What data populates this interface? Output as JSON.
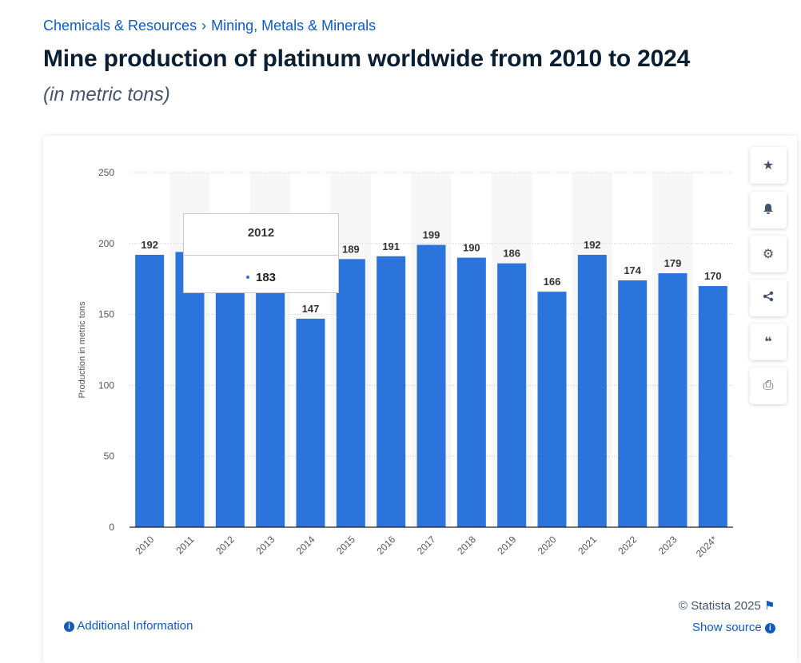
{
  "breadcrumb": [
    "Chemicals & Resources",
    "Mining, Metals & Minerals"
  ],
  "breadcrumb_sep": "›",
  "title": "Mine production of platinum worldwide from 2010 to 2024",
  "subtitle": "(in metric tons)",
  "chart_data": {
    "type": "bar",
    "categories": [
      "2010",
      "2011",
      "2012",
      "2013",
      "2014",
      "2015",
      "2016",
      "2017",
      "2018",
      "2019",
      "2020",
      "2021",
      "2022",
      "2023",
      "2024*"
    ],
    "values": [
      192,
      194,
      183,
      184,
      147,
      189,
      191,
      199,
      190,
      186,
      166,
      192,
      174,
      179,
      170
    ],
    "labels_visible": [
      true,
      false,
      false,
      false,
      true,
      true,
      true,
      true,
      true,
      true,
      true,
      true,
      true,
      true,
      true
    ],
    "ylabel": "Production in metric tons",
    "yticks": [
      0,
      50,
      100,
      150,
      200,
      250
    ],
    "ylim": [
      0,
      250
    ],
    "grid": true,
    "bar_color": "#2a74db"
  },
  "tooltip": {
    "year": "2012",
    "value": "183"
  },
  "side_buttons": [
    "star-icon",
    "bell-icon",
    "gear-icon",
    "share-icon",
    "quote-icon",
    "print-icon"
  ],
  "footer": {
    "copyright": "© Statista 2025",
    "additional": "Additional Information",
    "source": "Show source"
  }
}
